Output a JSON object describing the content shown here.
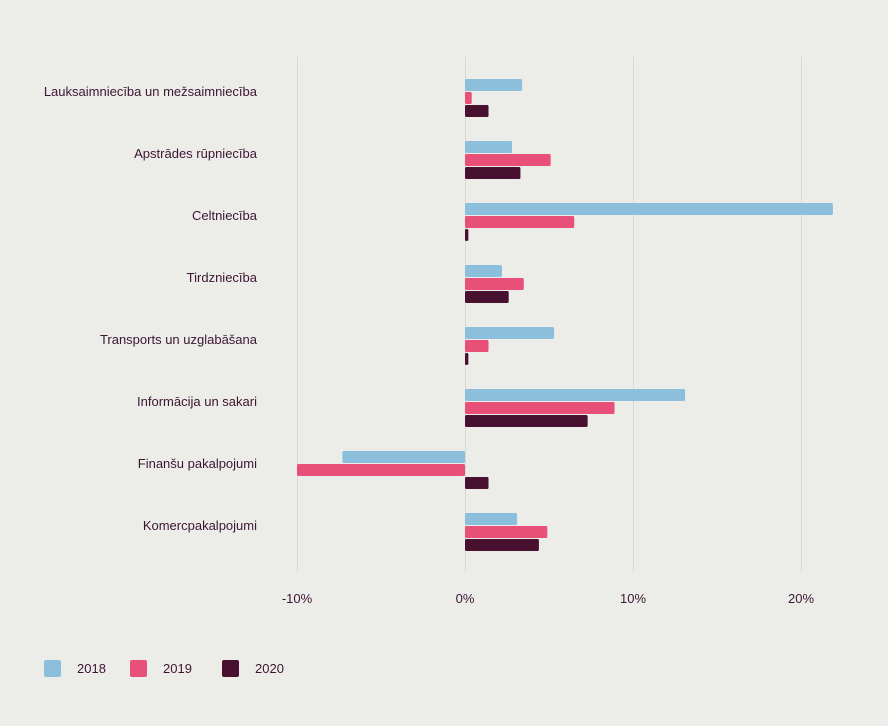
{
  "chart_data": {
    "type": "bar",
    "orientation": "horizontal",
    "categories": [
      "Lauksaimniecība un mežsaimniecība",
      "Apstrādes rūpniecība",
      "Celtniecība",
      "Tirdzniecība",
      "Transports un uzglabāšana",
      "Informācija un sakari",
      "Finanšu pakalpojumi",
      "Komercpakalpojumi"
    ],
    "series": [
      {
        "name": "2018",
        "color": "#8bbfdb",
        "values": [
          3.4,
          2.8,
          21.9,
          2.2,
          5.3,
          13.1,
          -7.3,
          3.1
        ]
      },
      {
        "name": "2019",
        "color": "#e8507a",
        "values": [
          0.4,
          5.1,
          6.5,
          3.5,
          1.4,
          8.9,
          -10.0,
          4.9
        ]
      },
      {
        "name": "2020",
        "color": "#47112f",
        "values": [
          1.4,
          3.3,
          0.2,
          2.6,
          0.2,
          7.3,
          1.4,
          4.4
        ]
      }
    ],
    "xticks": [
      "-10%",
      "0%",
      "10%",
      "20%"
    ],
    "xtick_values": [
      -10,
      0,
      10,
      20
    ],
    "xlim": [
      -10,
      22
    ],
    "grid": true,
    "legend_position": "bottom-left",
    "title": "",
    "xlabel": "",
    "ylabel": ""
  }
}
